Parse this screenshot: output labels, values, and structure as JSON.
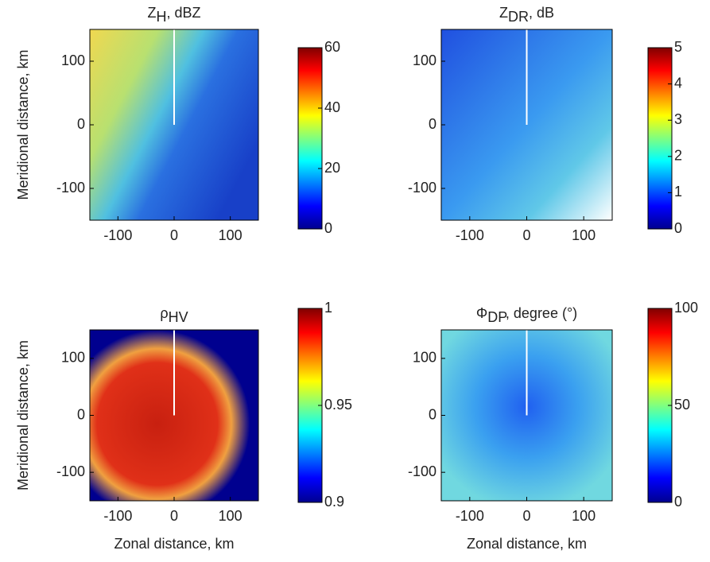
{
  "chart_data": [
    {
      "type": "heatmap",
      "title": {
        "main": "Z",
        "sub": "H",
        "rest": ", dBZ"
      },
      "ylabel": "Meridional distance, km",
      "xlim": [
        -150,
        150
      ],
      "xticks": [
        -100,
        0,
        100
      ],
      "ylim": [
        -150,
        150
      ],
      "yticks": [
        -100,
        0,
        100
      ],
      "colormap": "jet",
      "clim": [
        0,
        60
      ],
      "cticks": [
        0,
        20,
        40,
        60
      ]
    },
    {
      "type": "heatmap",
      "title": {
        "main": "Z",
        "sub": "DR",
        "rest": ", dB"
      },
      "xlim": [
        -150,
        150
      ],
      "xticks": [
        -100,
        0,
        100
      ],
      "ylim": [
        -150,
        150
      ],
      "yticks": [
        -100,
        0,
        100
      ],
      "colormap": "jet",
      "clim": [
        0,
        5
      ],
      "cticks": [
        0,
        1,
        2,
        3,
        4,
        5
      ]
    },
    {
      "type": "heatmap",
      "title": {
        "main": "ρ",
        "sub": "HV"
      },
      "ylabel": "Meridional distance, km",
      "xlabel": "Zonal distance, km",
      "xlim": [
        -150,
        150
      ],
      "xticks": [
        -100,
        0,
        100
      ],
      "ylim": [
        -150,
        150
      ],
      "yticks": [
        -100,
        0,
        100
      ],
      "colormap": "jet",
      "clim": [
        0.9,
        1
      ],
      "cticks": [
        0.9,
        0.95,
        1
      ]
    },
    {
      "type": "heatmap",
      "title": {
        "main": "Φ",
        "sub": "DP",
        "rest": ", degree (°)"
      },
      "xlabel": "Zonal distance, km",
      "xlim": [
        -150,
        150
      ],
      "xticks": [
        -100,
        0,
        100
      ],
      "ylim": [
        -150,
        150
      ],
      "yticks": [
        -100,
        0,
        100
      ],
      "colormap": "jet",
      "clim": [
        0,
        100
      ],
      "cticks": [
        0,
        50,
        100
      ]
    }
  ]
}
